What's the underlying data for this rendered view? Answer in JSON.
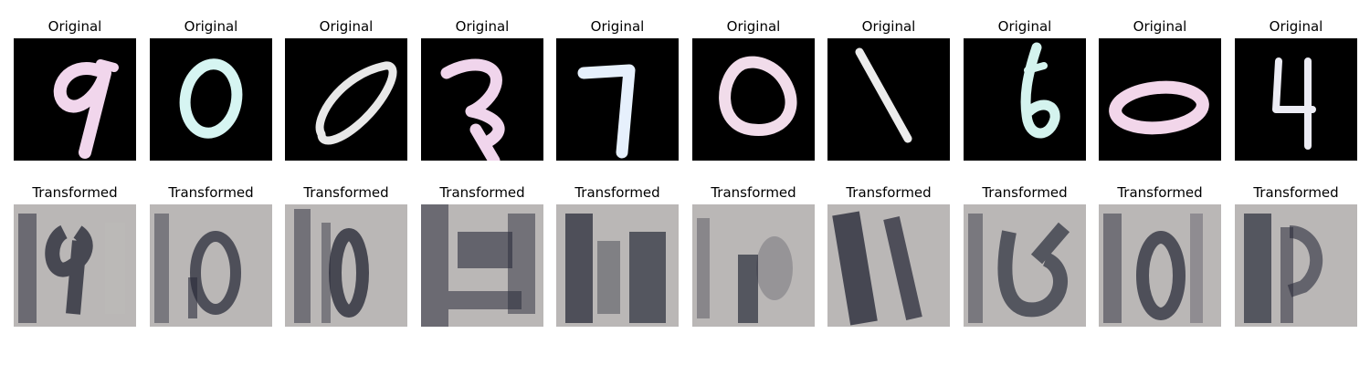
{
  "figure": {
    "rows": [
      {
        "id": "original",
        "title": "Original",
        "panels": [
          {
            "digit": "9",
            "color": "#f1d6ec"
          },
          {
            "digit": "0",
            "color": "#d6f5f2"
          },
          {
            "digit": "0",
            "color": "#e8e8e8"
          },
          {
            "digit": "3",
            "color": "#f0d5ec"
          },
          {
            "digit": "7",
            "color": "#e6f0fc"
          },
          {
            "digit": "0",
            "color": "#f1dcea"
          },
          {
            "digit": "1",
            "color": "#ececec"
          },
          {
            "digit": "6",
            "color": "#d4f3ee"
          },
          {
            "digit": "0",
            "color": "#f2d6ea"
          },
          {
            "digit": "4",
            "color": "#ececf4"
          }
        ]
      },
      {
        "id": "transformed",
        "title": "Transformed",
        "panels": [
          {
            "glyph": "9"
          },
          {
            "glyph": "0"
          },
          {
            "glyph": "0"
          },
          {
            "glyph": "3"
          },
          {
            "glyph": "7"
          },
          {
            "glyph": "0"
          },
          {
            "glyph": "1"
          },
          {
            "glyph": "6"
          },
          {
            "glyph": "0"
          },
          {
            "glyph": "4"
          }
        ]
      }
    ],
    "colors": {
      "original_background": "#000000",
      "transformed_background": "#c9c6c0",
      "transformed_stroke": "#2a2c3a"
    }
  }
}
